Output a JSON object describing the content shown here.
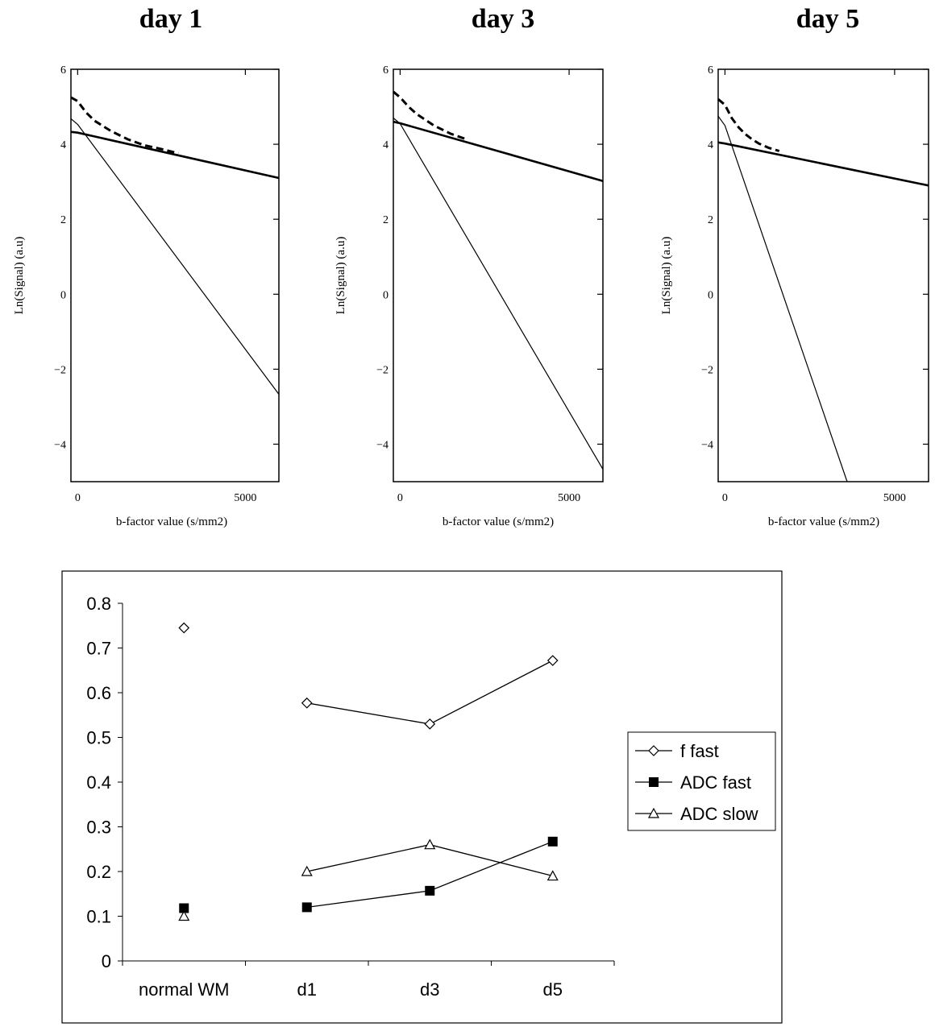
{
  "colors": {
    "ink": "#000000",
    "background": "#ffffff"
  },
  "chart_data": [
    {
      "type": "line",
      "title": "day 1",
      "xlabel": "b-factor value (s/mm2)",
      "ylabel": "Ln(Signal) (a.u)",
      "xlim": [
        -200,
        6000
      ],
      "ylim": [
        -5,
        6
      ],
      "yticks": [
        6,
        4,
        2,
        0,
        -2,
        -4
      ],
      "xticks": [
        0,
        5000
      ],
      "ytick_labels": [
        "6",
        "4",
        "2",
        "0",
        "−2",
        "−4"
      ],
      "xtick_labels": [
        "0",
        "5000"
      ],
      "grid": false,
      "series": [
        {
          "style": "thick",
          "x": [
            -200,
            0,
            6000
          ],
          "y": [
            4.33,
            4.31,
            3.1
          ]
        },
        {
          "style": "thin",
          "x": [
            -200,
            0,
            6000
          ],
          "y": [
            4.68,
            4.53,
            -2.67
          ]
        },
        {
          "style": "dashed",
          "x": [
            -200,
            0,
            250,
            500,
            1000,
            1500,
            2000,
            2500,
            3000
          ],
          "y": [
            5.25,
            5.15,
            4.85,
            4.63,
            4.35,
            4.13,
            3.97,
            3.87,
            3.76
          ]
        }
      ]
    },
    {
      "type": "line",
      "title": "day 3",
      "xlabel": "b-factor value (s/mm2)",
      "ylabel": "Ln(Signal) (a.u)",
      "xlim": [
        -200,
        6000
      ],
      "ylim": [
        -5,
        6
      ],
      "yticks": [
        6,
        4,
        2,
        0,
        -2,
        -4
      ],
      "xticks": [
        0,
        5000
      ],
      "ytick_labels": [
        "6",
        "4",
        "2",
        "0",
        "−2",
        "−4"
      ],
      "xtick_labels": [
        "0",
        "5000"
      ],
      "grid": false,
      "series": [
        {
          "style": "thick",
          "x": [
            -200,
            0,
            6000
          ],
          "y": [
            4.6,
            4.56,
            3.02
          ]
        },
        {
          "style": "thin",
          "x": [
            -200,
            0,
            6000
          ],
          "y": [
            4.7,
            4.55,
            -4.67
          ]
        },
        {
          "style": "dashed",
          "x": [
            -200,
            0,
            250,
            500,
            1000,
            1500,
            2000
          ],
          "y": [
            5.4,
            5.25,
            5.0,
            4.8,
            4.5,
            4.28,
            4.12
          ]
        }
      ]
    },
    {
      "type": "line",
      "title": "day 5",
      "xlabel": "b-factor value (s/mm2)",
      "ylabel": "Ln(Signal) (a.u)",
      "xlim": [
        -200,
        6000
      ],
      "ylim": [
        -5,
        6
      ],
      "yticks": [
        6,
        4,
        2,
        0,
        -2,
        -4
      ],
      "xticks": [
        0,
        5000
      ],
      "ytick_labels": [
        "6",
        "4",
        "2",
        "0",
        "−2",
        "−4"
      ],
      "xtick_labels": [
        "0",
        "5000"
      ],
      "grid": false,
      "series": [
        {
          "style": "thick",
          "x": [
            -200,
            0,
            6000
          ],
          "y": [
            4.05,
            4.02,
            2.9
          ]
        },
        {
          "style": "thin",
          "x": [
            -200,
            0,
            3600
          ],
          "y": [
            4.75,
            4.5,
            -5.0
          ]
        },
        {
          "style": "dashed",
          "x": [
            -200,
            0,
            200,
            400,
            600,
            800,
            1000,
            1300,
            1600
          ],
          "y": [
            5.2,
            5.05,
            4.7,
            4.45,
            4.27,
            4.13,
            4.02,
            3.9,
            3.82
          ]
        }
      ]
    },
    {
      "type": "line",
      "categories": [
        "normal WM",
        "d1",
        "d3",
        "d5"
      ],
      "ylim": [
        0,
        0.8
      ],
      "yticks": [
        0,
        0.1,
        0.2,
        0.3,
        0.4,
        0.5,
        0.6,
        0.7,
        0.8
      ],
      "ytick_labels": [
        "0",
        "0.1",
        "0.2",
        "0.3",
        "0.4",
        "0.5",
        "0.6",
        "0.7",
        "0.8"
      ],
      "grid": false,
      "legend_position": "right",
      "series": [
        {
          "name": "f fast",
          "marker": "diamond-open",
          "values": [
            0.745,
            0.577,
            0.53,
            0.672
          ]
        },
        {
          "name": "ADC fast",
          "marker": "square-filled",
          "values": [
            0.118,
            0.12,
            0.157,
            0.267
          ]
        },
        {
          "name": "ADC slow",
          "marker": "triangle-open",
          "values": [
            0.1,
            0.2,
            0.26,
            0.19
          ]
        }
      ]
    }
  ]
}
